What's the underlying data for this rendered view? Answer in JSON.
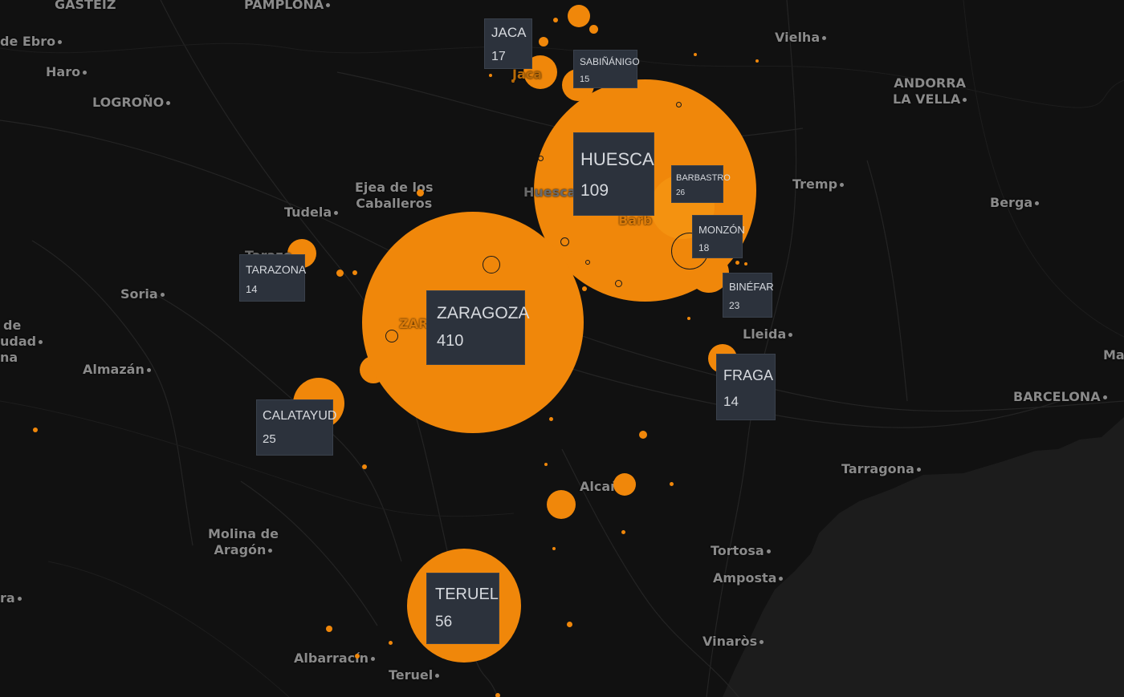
{
  "map": {
    "colors": {
      "background": "#111111",
      "sea": "#1c1c1c",
      "bubble": "#f0870a",
      "label_box": "#2c323c",
      "label_text": "#d6d9de",
      "place_text": "#8a8a8a"
    },
    "places": {
      "gasteiz": "GASTEIZ",
      "pamplona": "PAMPLONA",
      "miranda": "de Ebro",
      "haro": "Haro",
      "logrono": "LOGROÑO",
      "vielha": "Vielha",
      "andorra_1": "ANDORRA",
      "andorra_2": "LA VELLA",
      "ejea_1": "Ejea de los",
      "ejea_2": "Caballeros",
      "tudela": "Tudela",
      "tremp": "Tremp",
      "berga": "Berga",
      "soria": "Soria",
      "left_de": "de",
      "left_udad": "udad",
      "left_na": "na",
      "almazan": "Almazán",
      "lleida": "Lleida",
      "barcelona": "BARCELONA",
      "ma": "Ma",
      "tarragona": "Tarragona",
      "alcaniz": "Alcañiz",
      "molina_1": "Molina de",
      "molina_2": "Aragón",
      "tortosa": "Tortosa",
      "amposta": "Amposta",
      "left_ra": "ra",
      "vinaros": "Vinaròs",
      "albarracin": "Albarracín",
      "teruel_town": "Teruel",
      "huesca_town": "Huesca",
      "jaca_town": "Jaca",
      "tarazona_town": "Tarazo",
      "zaragoza_town": "ZAR",
      "barbastro_town": "Barb"
    },
    "labels": [
      {
        "name": "JACA",
        "count": "17"
      },
      {
        "name": "SABIÑÁNIGO",
        "count": "15"
      },
      {
        "name": "HUESCA",
        "count": "109"
      },
      {
        "name": "BARBASTRO",
        "count": "26"
      },
      {
        "name": "MONZÓN",
        "count": "18"
      },
      {
        "name": "TARAZONA",
        "count": "14"
      },
      {
        "name": "ZARAGOZA",
        "count": "410"
      },
      {
        "name": "BINÉFAR",
        "count": "23"
      },
      {
        "name": "FRAGA",
        "count": "14"
      },
      {
        "name": "CALATAYUD",
        "count": "25"
      },
      {
        "name": "TERUEL",
        "count": "56"
      }
    ]
  }
}
